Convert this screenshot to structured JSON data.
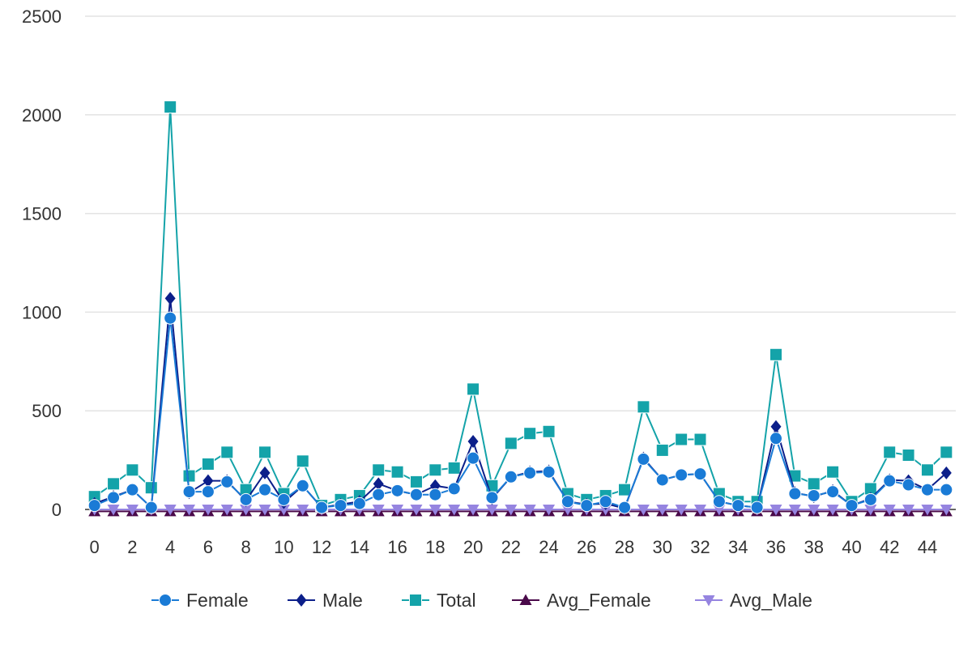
{
  "chart_data": {
    "type": "line",
    "title": "",
    "xlabel": "",
    "ylabel": "",
    "x": [
      0,
      1,
      2,
      3,
      4,
      5,
      6,
      7,
      8,
      9,
      10,
      11,
      12,
      13,
      14,
      15,
      16,
      17,
      18,
      19,
      20,
      21,
      22,
      23,
      24,
      25,
      26,
      27,
      28,
      29,
      30,
      31,
      32,
      33,
      34,
      35,
      36,
      37,
      38,
      39,
      40,
      41,
      42,
      43,
      44,
      45
    ],
    "x_tick_labels": [
      "0",
      "2",
      "4",
      "6",
      "8",
      "10",
      "12",
      "14",
      "16",
      "18",
      "20",
      "22",
      "24",
      "26",
      "28",
      "30",
      "32",
      "34",
      "36",
      "38",
      "40",
      "42",
      "44"
    ],
    "x_tick_values": [
      0,
      2,
      4,
      6,
      8,
      10,
      12,
      14,
      16,
      18,
      20,
      22,
      24,
      26,
      28,
      30,
      32,
      34,
      36,
      38,
      40,
      42,
      44
    ],
    "xlim": [
      -0.5,
      45.5
    ],
    "ylim": [
      0,
      2500
    ],
    "y_ticks": [
      0,
      500,
      1000,
      1500,
      2000,
      2500
    ],
    "y_tick_labels": [
      "0",
      "500",
      "1000",
      "1500",
      "2000",
      "2500"
    ],
    "grid": "horizontal",
    "legend_position": "bottom",
    "series": [
      {
        "name": "Female",
        "color": "#1a7bd6",
        "marker": "circle",
        "values": [
          20,
          60,
          100,
          10,
          970,
          90,
          90,
          140,
          50,
          100,
          50,
          120,
          10,
          20,
          30,
          75,
          95,
          75,
          75,
          105,
          260,
          60,
          165,
          185,
          190,
          40,
          20,
          40,
          10,
          255,
          150,
          175,
          180,
          40,
          20,
          10,
          360,
          80,
          70,
          90,
          20,
          50,
          145,
          125,
          100,
          100
        ]
      },
      {
        "name": "Male",
        "color": "#0c1f8a",
        "marker": "diamond",
        "values": [
          30,
          65,
          100,
          10,
          1070,
          85,
          145,
          145,
          45,
          185,
          35,
          120,
          10,
          25,
          40,
          130,
          95,
          75,
          120,
          105,
          345,
          55,
          165,
          190,
          195,
          40,
          25,
          30,
          5,
          260,
          150,
          175,
          180,
          40,
          20,
          10,
          420,
          85,
          65,
          95,
          20,
          55,
          150,
          145,
          100,
          185
        ]
      },
      {
        "name": "Total",
        "color": "#14a3a9",
        "marker": "square",
        "values": [
          65,
          130,
          200,
          110,
          2040,
          170,
          230,
          290,
          100,
          290,
          80,
          245,
          20,
          50,
          70,
          200,
          190,
          140,
          200,
          210,
          610,
          120,
          335,
          385,
          395,
          80,
          50,
          70,
          100,
          520,
          300,
          355,
          355,
          80,
          40,
          40,
          785,
          170,
          130,
          190,
          40,
          105,
          290,
          275,
          200,
          290
        ]
      },
      {
        "name": "Avg_Female",
        "color": "#4a0a4a",
        "marker": "triangle-up",
        "values": [
          -10,
          -10,
          -10,
          -10,
          -10,
          -10,
          -10,
          -10,
          -10,
          -10,
          -10,
          -10,
          -10,
          -10,
          -10,
          -10,
          -10,
          -10,
          -10,
          -10,
          -10,
          -10,
          -10,
          -10,
          -10,
          -10,
          -10,
          -10,
          -10,
          -10,
          -10,
          -10,
          -10,
          -10,
          -10,
          -10,
          -10,
          -10,
          -10,
          -10,
          -10,
          -10,
          -10,
          -10,
          -10,
          -10
        ]
      },
      {
        "name": "Avg_Male",
        "color": "#9584e0",
        "marker": "triangle-down",
        "values": [
          0,
          0,
          0,
          0,
          0,
          0,
          0,
          0,
          0,
          0,
          0,
          0,
          0,
          0,
          0,
          0,
          0,
          0,
          0,
          0,
          0,
          0,
          0,
          0,
          0,
          0,
          0,
          0,
          0,
          0,
          0,
          0,
          0,
          0,
          0,
          0,
          0,
          0,
          0,
          0,
          0,
          0,
          0,
          0,
          0,
          0
        ]
      }
    ]
  }
}
